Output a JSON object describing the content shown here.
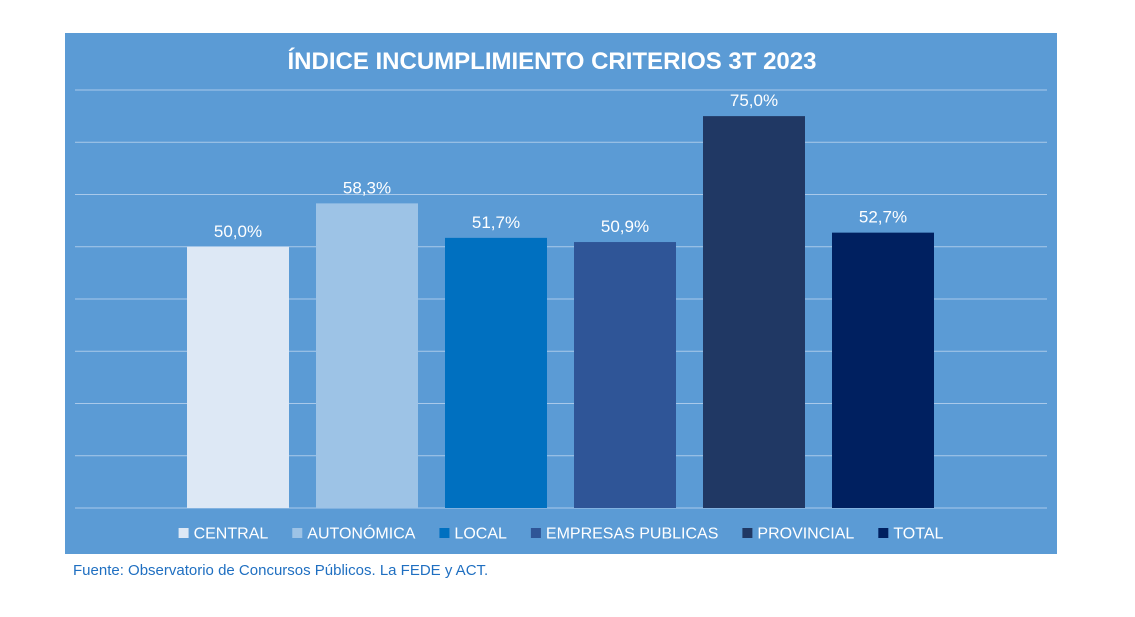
{
  "chart_data": {
    "type": "bar",
    "title": "ÍNDICE INCUMPLIMIENTO CRITERIOS 3T 2023",
    "categories": [
      "CENTRAL",
      "AUTONÓMICA",
      "LOCAL",
      "EMPRESAS PUBLICAS",
      "PROVINCIAL",
      "TOTAL"
    ],
    "values": [
      50.0,
      58.3,
      51.7,
      50.9,
      75.0,
      52.7
    ],
    "data_labels": [
      "50,0%",
      "58,3%",
      "51,7%",
      "50,9%",
      "75,0%",
      "52,7%"
    ],
    "colors": [
      "#dde8f5",
      "#9dc3e6",
      "#0070c0",
      "#2f5597",
      "#203864",
      "#002060"
    ],
    "background_color": "#5b9bd5",
    "gridline_color": "#a9c9ea",
    "ylim": [
      0,
      80
    ],
    "grid": true,
    "legend_position": "bottom"
  },
  "source_note": "Fuente: Observatorio de Concursos Públicos. La FEDE y ACT."
}
